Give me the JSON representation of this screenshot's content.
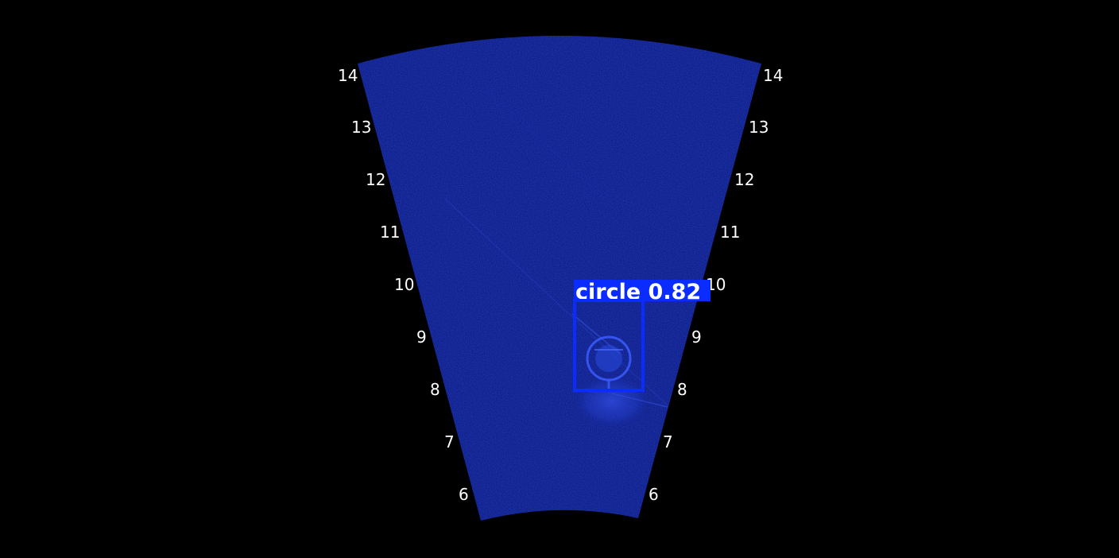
{
  "sonar": {
    "range_labels_left": [
      "14",
      "13",
      "12",
      "11",
      "10",
      "9",
      "8",
      "7",
      "6"
    ],
    "range_labels_right": [
      "14",
      "13",
      "12",
      "11",
      "10",
      "9",
      "8",
      "7",
      "6"
    ],
    "fan_color": "#06127a",
    "background": "#000000"
  },
  "detection": {
    "label": "circle 0.82",
    "class_name": "circle",
    "confidence": 0.82,
    "color": "#0a2cff"
  }
}
